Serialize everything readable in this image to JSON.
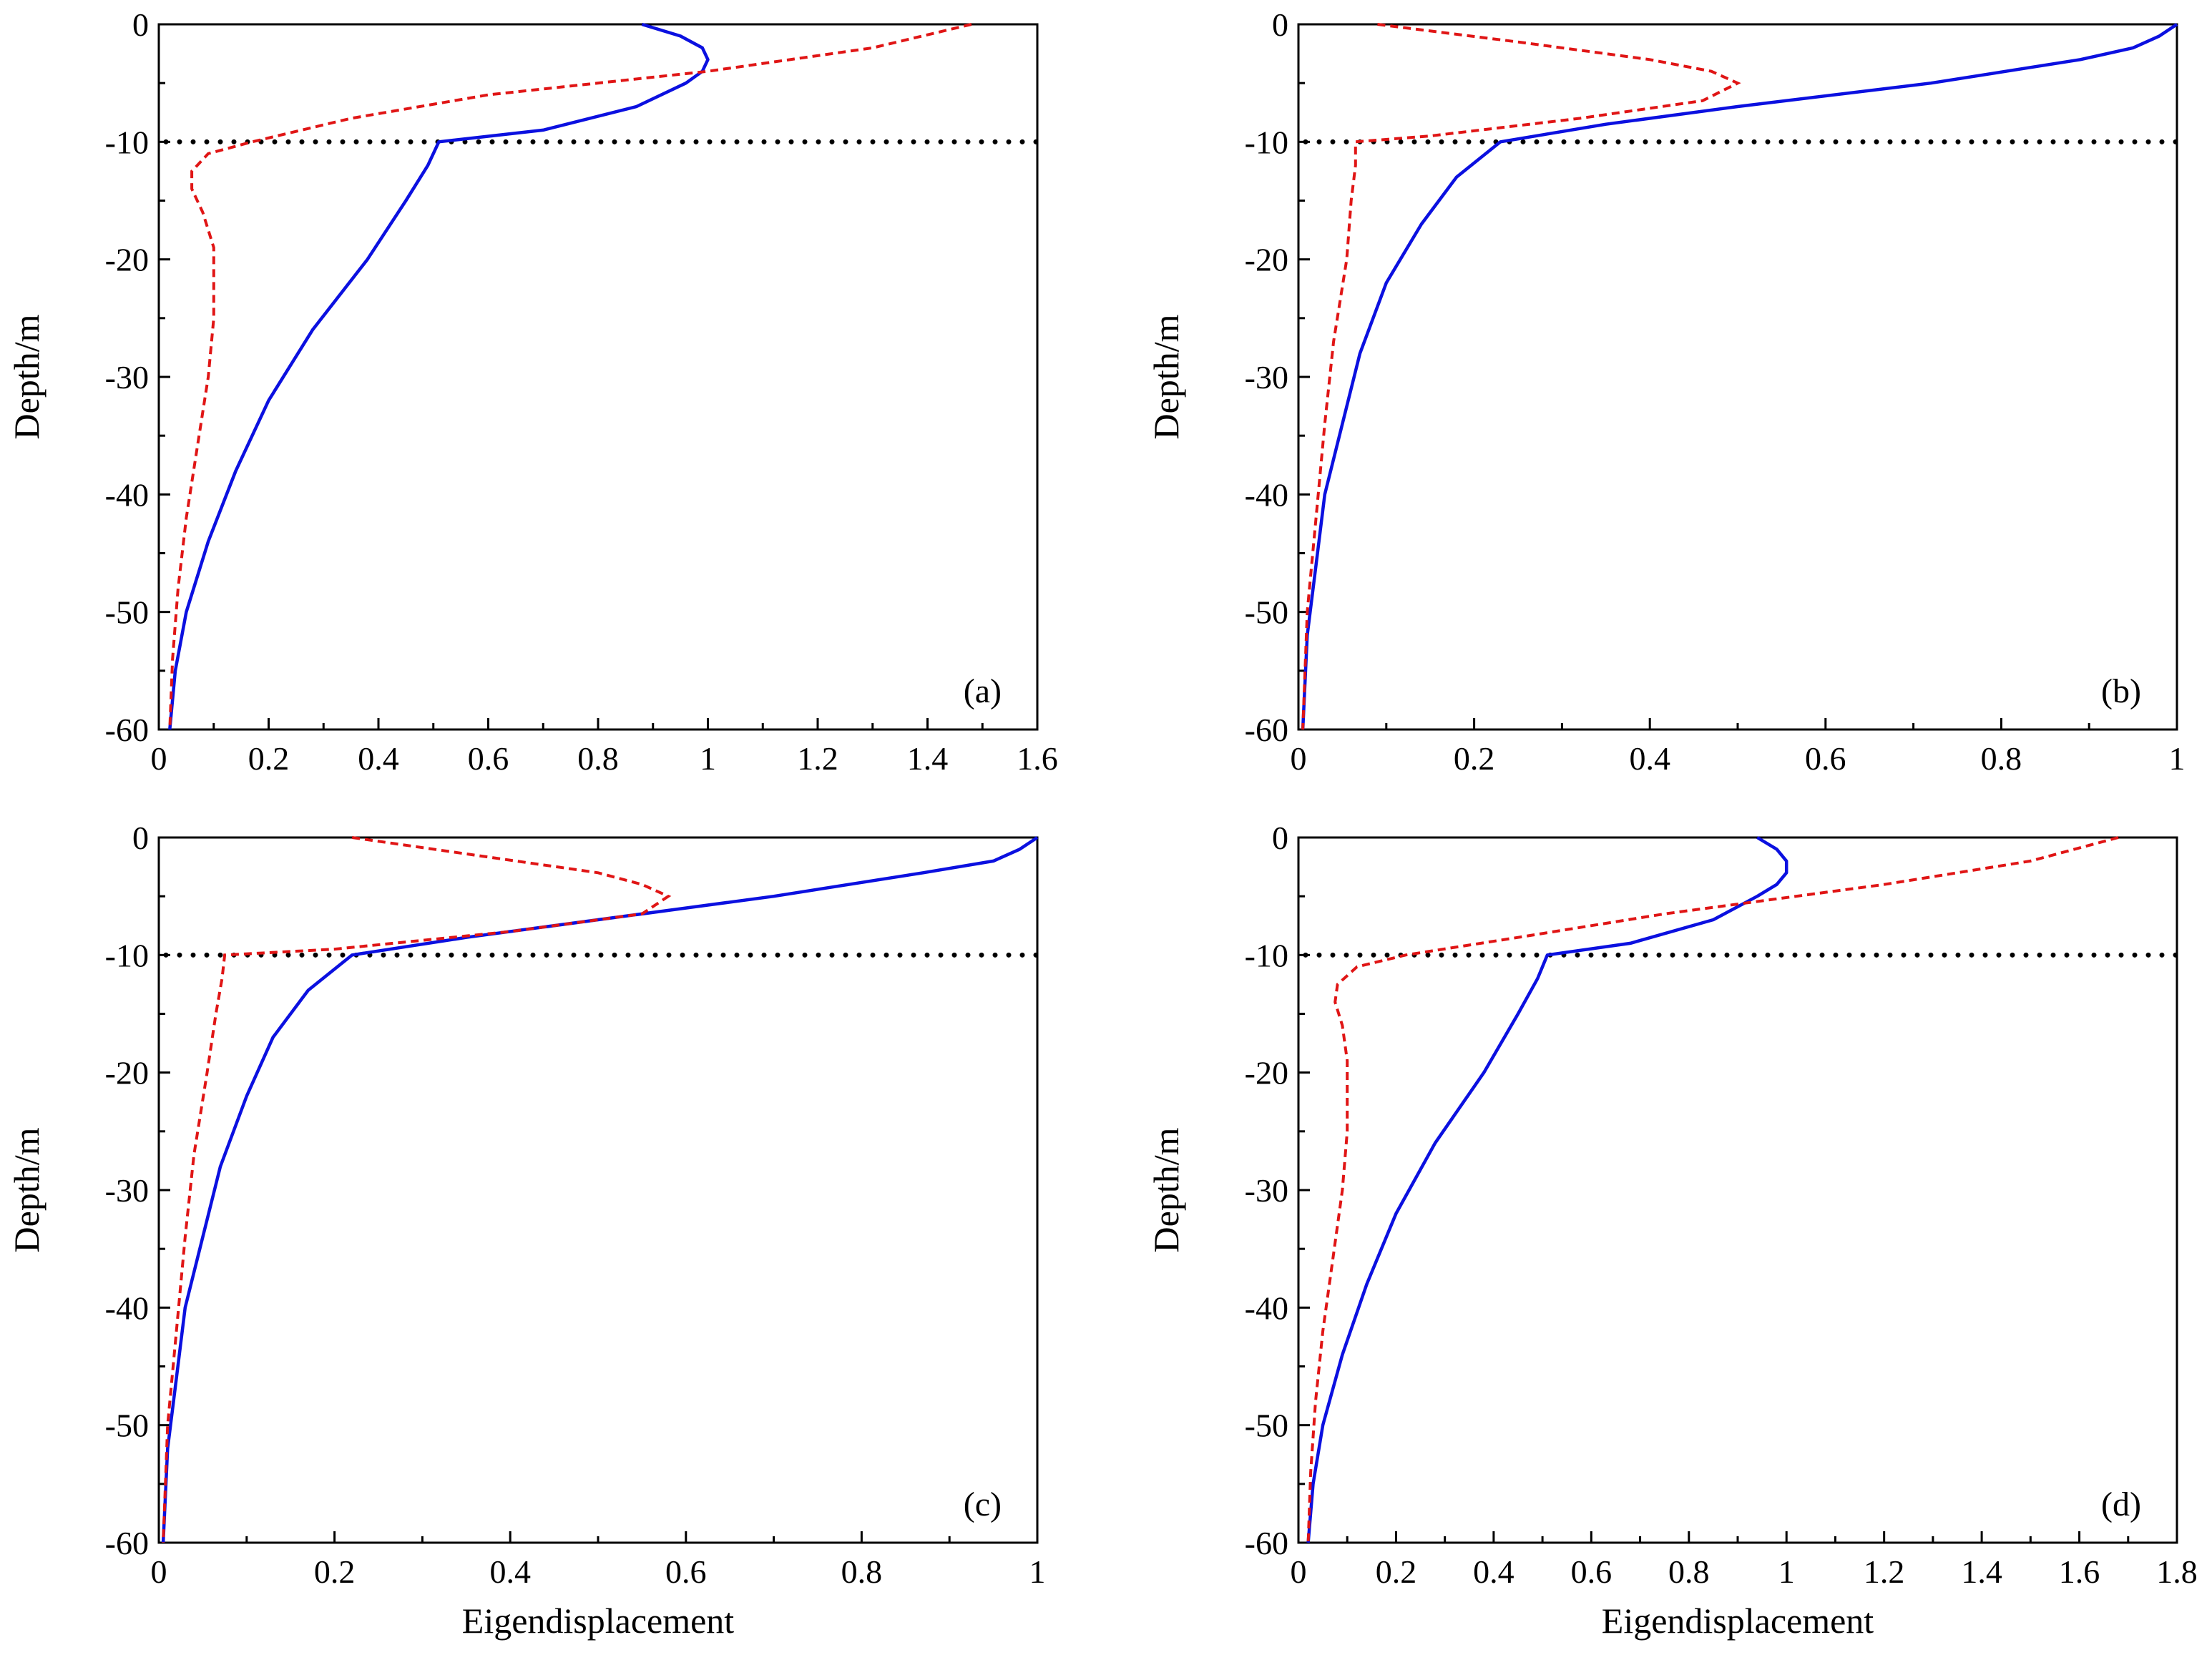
{
  "colors": {
    "solid_series": "#0b10e0",
    "dashed_series": "#e01515",
    "reference_line": "#000000"
  },
  "chart_data": [
    {
      "type": "line",
      "panel_label": "(a)",
      "xlabel": "",
      "ylabel": "Depth/m",
      "xlim": [
        0,
        1.6
      ],
      "ylim": [
        -60,
        0
      ],
      "xticks": [
        0,
        0.2,
        0.4,
        0.6,
        0.8,
        1,
        1.2,
        1.4,
        1.6
      ],
      "xtick_labels": [
        "0",
        "0.2",
        "0.4",
        "0.6",
        "0.8",
        "1",
        "1.2",
        "1.4",
        "1.6"
      ],
      "yticks": [
        0,
        -10,
        -20,
        -30,
        -40,
        -50,
        -60
      ],
      "ytick_labels": [
        "0",
        "-10",
        "-20",
        "-30",
        "-40",
        "-50",
        "-60"
      ],
      "reference_depth": -10,
      "series": [
        {
          "name": "solid",
          "style": "solid",
          "points": [
            [
              0.88,
              0
            ],
            [
              0.95,
              -1
            ],
            [
              0.99,
              -2
            ],
            [
              1.0,
              -3
            ],
            [
              0.99,
              -4
            ],
            [
              0.96,
              -5
            ],
            [
              0.87,
              -7
            ],
            [
              0.7,
              -9
            ],
            [
              0.51,
              -10
            ],
            [
              0.49,
              -12
            ],
            [
              0.45,
              -15
            ],
            [
              0.38,
              -20
            ],
            [
              0.28,
              -26
            ],
            [
              0.2,
              -32
            ],
            [
              0.14,
              -38
            ],
            [
              0.09,
              -44
            ],
            [
              0.05,
              -50
            ],
            [
              0.03,
              -55
            ],
            [
              0.02,
              -60
            ]
          ]
        },
        {
          "name": "dashed",
          "style": "dashed",
          "points": [
            [
              1.48,
              0
            ],
            [
              1.3,
              -2
            ],
            [
              1.0,
              -4
            ],
            [
              0.6,
              -6
            ],
            [
              0.35,
              -8
            ],
            [
              0.17,
              -10
            ],
            [
              0.09,
              -11
            ],
            [
              0.06,
              -12.5
            ],
            [
              0.06,
              -14
            ],
            [
              0.08,
              -16
            ],
            [
              0.1,
              -19
            ],
            [
              0.1,
              -22
            ],
            [
              0.1,
              -25
            ],
            [
              0.09,
              -30
            ],
            [
              0.07,
              -36
            ],
            [
              0.05,
              -42
            ],
            [
              0.035,
              -48
            ],
            [
              0.025,
              -54
            ],
            [
              0.02,
              -60
            ]
          ]
        }
      ]
    },
    {
      "type": "line",
      "panel_label": "(b)",
      "xlabel": "",
      "ylabel": "Depth/m",
      "xlim": [
        0,
        1
      ],
      "ylim": [
        -60,
        0
      ],
      "xticks": [
        0,
        0.2,
        0.4,
        0.6,
        0.8,
        1
      ],
      "xtick_labels": [
        "0",
        "0.2",
        "0.4",
        "0.6",
        "0.8",
        "1"
      ],
      "yticks": [
        0,
        -10,
        -20,
        -30,
        -40,
        -50,
        -60
      ],
      "ytick_labels": [
        "0",
        "-10",
        "-20",
        "-30",
        "-40",
        "-50",
        "-60"
      ],
      "reference_depth": -10,
      "series": [
        {
          "name": "solid",
          "style": "solid",
          "points": [
            [
              1.0,
              0
            ],
            [
              0.98,
              -1
            ],
            [
              0.95,
              -2
            ],
            [
              0.89,
              -3
            ],
            [
              0.72,
              -5
            ],
            [
              0.5,
              -7
            ],
            [
              0.35,
              -8.5
            ],
            [
              0.23,
              -10
            ],
            [
              0.18,
              -13
            ],
            [
              0.14,
              -17
            ],
            [
              0.1,
              -22
            ],
            [
              0.07,
              -28
            ],
            [
              0.05,
              -34
            ],
            [
              0.03,
              -40
            ],
            [
              0.02,
              -46
            ],
            [
              0.01,
              -52
            ],
            [
              0.005,
              -60
            ]
          ]
        },
        {
          "name": "dashed",
          "style": "dashed",
          "points": [
            [
              0.09,
              0
            ],
            [
              0.25,
              -1.5
            ],
            [
              0.4,
              -3
            ],
            [
              0.47,
              -4
            ],
            [
              0.5,
              -5
            ],
            [
              0.46,
              -6.5
            ],
            [
              0.32,
              -8
            ],
            [
              0.15,
              -9.5
            ],
            [
              0.065,
              -10
            ],
            [
              0.065,
              -12
            ],
            [
              0.06,
              -15
            ],
            [
              0.055,
              -20
            ],
            [
              0.04,
              -27
            ],
            [
              0.03,
              -34
            ],
            [
              0.02,
              -42
            ],
            [
              0.01,
              -50
            ],
            [
              0.005,
              -60
            ]
          ]
        }
      ]
    },
    {
      "type": "line",
      "panel_label": "(c)",
      "xlabel": "Eigendisplacement",
      "ylabel": "Depth/m",
      "xlim": [
        0,
        1
      ],
      "ylim": [
        -60,
        0
      ],
      "xticks": [
        0,
        0.2,
        0.4,
        0.6,
        0.8,
        1
      ],
      "xtick_labels": [
        "0",
        "0.2",
        "0.4",
        "0.6",
        "0.8",
        "1"
      ],
      "yticks": [
        0,
        -10,
        -20,
        -30,
        -40,
        -50,
        -60
      ],
      "ytick_labels": [
        "0",
        "-10",
        "-20",
        "-30",
        "-40",
        "-50",
        "-60"
      ],
      "reference_depth": -10,
      "series": [
        {
          "name": "solid",
          "style": "solid",
          "points": [
            [
              1.0,
              0
            ],
            [
              0.98,
              -1
            ],
            [
              0.95,
              -2
            ],
            [
              0.87,
              -3
            ],
            [
              0.7,
              -5
            ],
            [
              0.5,
              -7
            ],
            [
              0.35,
              -8.5
            ],
            [
              0.22,
              -10
            ],
            [
              0.17,
              -13
            ],
            [
              0.13,
              -17
            ],
            [
              0.1,
              -22
            ],
            [
              0.07,
              -28
            ],
            [
              0.05,
              -34
            ],
            [
              0.03,
              -40
            ],
            [
              0.02,
              -46
            ],
            [
              0.01,
              -52
            ],
            [
              0.005,
              -60
            ]
          ]
        },
        {
          "name": "dashed",
          "style": "dashed",
          "points": [
            [
              0.22,
              0
            ],
            [
              0.36,
              -1.5
            ],
            [
              0.5,
              -3
            ],
            [
              0.55,
              -4
            ],
            [
              0.58,
              -5
            ],
            [
              0.55,
              -6.5
            ],
            [
              0.4,
              -8
            ],
            [
              0.2,
              -9.5
            ],
            [
              0.075,
              -10
            ],
            [
              0.072,
              -12
            ],
            [
              0.065,
              -15
            ],
            [
              0.055,
              -20
            ],
            [
              0.04,
              -27
            ],
            [
              0.03,
              -34
            ],
            [
              0.02,
              -42
            ],
            [
              0.01,
              -50
            ],
            [
              0.005,
              -60
            ]
          ]
        }
      ]
    },
    {
      "type": "line",
      "panel_label": "(d)",
      "xlabel": "Eigendisplacement",
      "ylabel": "Depth/m",
      "xlim": [
        0,
        1.8
      ],
      "ylim": [
        -60,
        0
      ],
      "xticks": [
        0,
        0.2,
        0.4,
        0.6,
        0.8,
        1,
        1.2,
        1.4,
        1.6,
        1.8
      ],
      "xtick_labels": [
        "0",
        "0.2",
        "0.4",
        "0.6",
        "0.8",
        "1",
        "1.2",
        "1.4",
        "1.6",
        "1.8"
      ],
      "yticks": [
        0,
        -10,
        -20,
        -30,
        -40,
        -50,
        -60
      ],
      "ytick_labels": [
        "0",
        "-10",
        "-20",
        "-30",
        "-40",
        "-50",
        "-60"
      ],
      "reference_depth": -10,
      "series": [
        {
          "name": "solid",
          "style": "solid",
          "points": [
            [
              0.94,
              0
            ],
            [
              0.98,
              -1
            ],
            [
              1.0,
              -2
            ],
            [
              1.0,
              -3
            ],
            [
              0.98,
              -4
            ],
            [
              0.94,
              -5
            ],
            [
              0.85,
              -7
            ],
            [
              0.68,
              -9
            ],
            [
              0.51,
              -10
            ],
            [
              0.49,
              -12
            ],
            [
              0.45,
              -15
            ],
            [
              0.38,
              -20
            ],
            [
              0.28,
              -26
            ],
            [
              0.2,
              -32
            ],
            [
              0.14,
              -38
            ],
            [
              0.09,
              -44
            ],
            [
              0.05,
              -50
            ],
            [
              0.03,
              -55
            ],
            [
              0.02,
              -60
            ]
          ]
        },
        {
          "name": "dashed",
          "style": "dashed",
          "points": [
            [
              1.68,
              0
            ],
            [
              1.5,
              -2
            ],
            [
              1.2,
              -4
            ],
            [
              0.75,
              -6.5
            ],
            [
              0.45,
              -8.5
            ],
            [
              0.22,
              -10
            ],
            [
              0.12,
              -11
            ],
            [
              0.08,
              -12.5
            ],
            [
              0.075,
              -14
            ],
            [
              0.09,
              -16
            ],
            [
              0.1,
              -19
            ],
            [
              0.1,
              -22
            ],
            [
              0.1,
              -25
            ],
            [
              0.09,
              -30
            ],
            [
              0.07,
              -36
            ],
            [
              0.05,
              -42
            ],
            [
              0.035,
              -48
            ],
            [
              0.025,
              -54
            ],
            [
              0.02,
              -60
            ]
          ]
        }
      ]
    }
  ]
}
